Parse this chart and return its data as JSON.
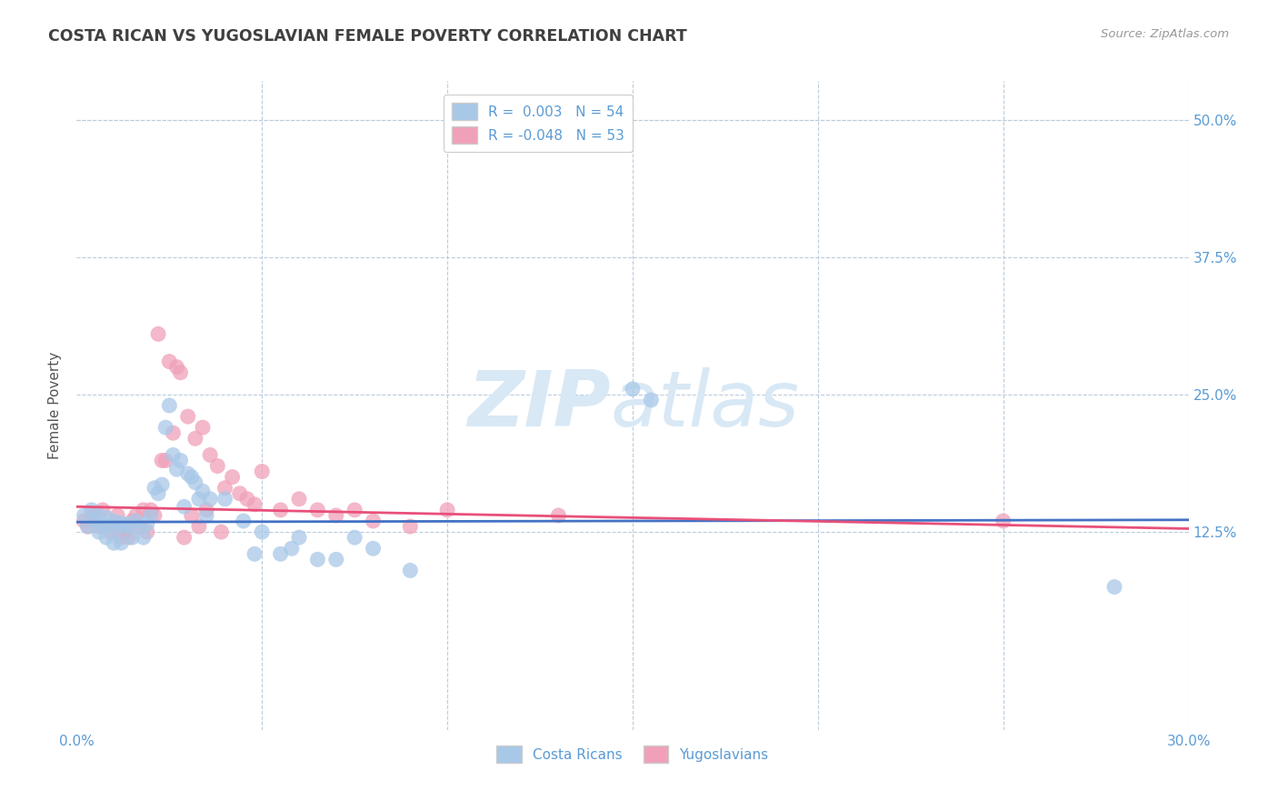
{
  "title": "COSTA RICAN VS YUGOSLAVIAN FEMALE POVERTY CORRELATION CHART",
  "source": "Source: ZipAtlas.com",
  "ylabel": "Female Poverty",
  "xlim": [
    0.0,
    0.3
  ],
  "ylim": [
    -0.055,
    0.535
  ],
  "ytick_positions": [
    0.0,
    0.125,
    0.25,
    0.375,
    0.5
  ],
  "ytick_labels": [
    "",
    "12.5%",
    "25.0%",
    "37.5%",
    "50.0%"
  ],
  "xtick_positions": [
    0.0,
    0.05,
    0.1,
    0.15,
    0.2,
    0.25,
    0.3
  ],
  "xtick_labels": [
    "0.0%",
    "",
    "",
    "",
    "",
    "",
    "30.0%"
  ],
  "color_blue": "#A8C8E8",
  "color_pink": "#F0A0B8",
  "color_blue_line": "#4472C4",
  "color_pink_line": "#E8507A",
  "color_axis_label": "#5B9BD5",
  "color_source": "#999999",
  "color_title": "#404040",
  "watermark_text": "ZIPatlas",
  "watermark_color": "#D8E8F5",
  "blue_scatter": [
    [
      0.002,
      0.14
    ],
    [
      0.003,
      0.13
    ],
    [
      0.004,
      0.145
    ],
    [
      0.005,
      0.135
    ],
    [
      0.006,
      0.14
    ],
    [
      0.006,
      0.125
    ],
    [
      0.007,
      0.13
    ],
    [
      0.008,
      0.138
    ],
    [
      0.008,
      0.12
    ],
    [
      0.009,
      0.13
    ],
    [
      0.01,
      0.135
    ],
    [
      0.01,
      0.115
    ],
    [
      0.011,
      0.128
    ],
    [
      0.012,
      0.133
    ],
    [
      0.012,
      0.115
    ],
    [
      0.013,
      0.13
    ],
    [
      0.014,
      0.132
    ],
    [
      0.015,
      0.12
    ],
    [
      0.016,
      0.135
    ],
    [
      0.017,
      0.13
    ],
    [
      0.018,
      0.12
    ],
    [
      0.019,
      0.132
    ],
    [
      0.02,
      0.14
    ],
    [
      0.021,
      0.165
    ],
    [
      0.022,
      0.16
    ],
    [
      0.023,
      0.168
    ],
    [
      0.024,
      0.22
    ],
    [
      0.025,
      0.24
    ],
    [
      0.026,
      0.195
    ],
    [
      0.027,
      0.182
    ],
    [
      0.028,
      0.19
    ],
    [
      0.029,
      0.148
    ],
    [
      0.03,
      0.178
    ],
    [
      0.031,
      0.175
    ],
    [
      0.032,
      0.17
    ],
    [
      0.033,
      0.155
    ],
    [
      0.034,
      0.162
    ],
    [
      0.035,
      0.14
    ],
    [
      0.036,
      0.155
    ],
    [
      0.04,
      0.155
    ],
    [
      0.045,
      0.135
    ],
    [
      0.048,
      0.105
    ],
    [
      0.05,
      0.125
    ],
    [
      0.055,
      0.105
    ],
    [
      0.058,
      0.11
    ],
    [
      0.06,
      0.12
    ],
    [
      0.065,
      0.1
    ],
    [
      0.07,
      0.1
    ],
    [
      0.075,
      0.12
    ],
    [
      0.08,
      0.11
    ],
    [
      0.09,
      0.09
    ],
    [
      0.15,
      0.255
    ],
    [
      0.155,
      0.245
    ],
    [
      0.28,
      0.075
    ]
  ],
  "pink_scatter": [
    [
      0.002,
      0.135
    ],
    [
      0.003,
      0.13
    ],
    [
      0.004,
      0.14
    ],
    [
      0.005,
      0.14
    ],
    [
      0.006,
      0.13
    ],
    [
      0.007,
      0.145
    ],
    [
      0.008,
      0.13
    ],
    [
      0.009,
      0.125
    ],
    [
      0.01,
      0.13
    ],
    [
      0.011,
      0.14
    ],
    [
      0.012,
      0.12
    ],
    [
      0.013,
      0.125
    ],
    [
      0.014,
      0.12
    ],
    [
      0.015,
      0.135
    ],
    [
      0.016,
      0.14
    ],
    [
      0.017,
      0.13
    ],
    [
      0.018,
      0.145
    ],
    [
      0.019,
      0.125
    ],
    [
      0.02,
      0.145
    ],
    [
      0.021,
      0.14
    ],
    [
      0.022,
      0.305
    ],
    [
      0.023,
      0.19
    ],
    [
      0.024,
      0.19
    ],
    [
      0.025,
      0.28
    ],
    [
      0.026,
      0.215
    ],
    [
      0.027,
      0.275
    ],
    [
      0.028,
      0.27
    ],
    [
      0.029,
      0.12
    ],
    [
      0.03,
      0.23
    ],
    [
      0.031,
      0.14
    ],
    [
      0.032,
      0.21
    ],
    [
      0.033,
      0.13
    ],
    [
      0.034,
      0.22
    ],
    [
      0.035,
      0.145
    ],
    [
      0.036,
      0.195
    ],
    [
      0.038,
      0.185
    ],
    [
      0.039,
      0.125
    ],
    [
      0.04,
      0.165
    ],
    [
      0.042,
      0.175
    ],
    [
      0.044,
      0.16
    ],
    [
      0.046,
      0.155
    ],
    [
      0.048,
      0.15
    ],
    [
      0.05,
      0.18
    ],
    [
      0.055,
      0.145
    ],
    [
      0.06,
      0.155
    ],
    [
      0.065,
      0.145
    ],
    [
      0.07,
      0.14
    ],
    [
      0.075,
      0.145
    ],
    [
      0.08,
      0.135
    ],
    [
      0.09,
      0.13
    ],
    [
      0.1,
      0.145
    ],
    [
      0.13,
      0.14
    ],
    [
      0.25,
      0.135
    ]
  ],
  "blue_line": [
    [
      0.0,
      0.134
    ],
    [
      0.3,
      0.136
    ]
  ],
  "pink_line": [
    [
      0.0,
      0.148
    ],
    [
      0.3,
      0.128
    ]
  ]
}
